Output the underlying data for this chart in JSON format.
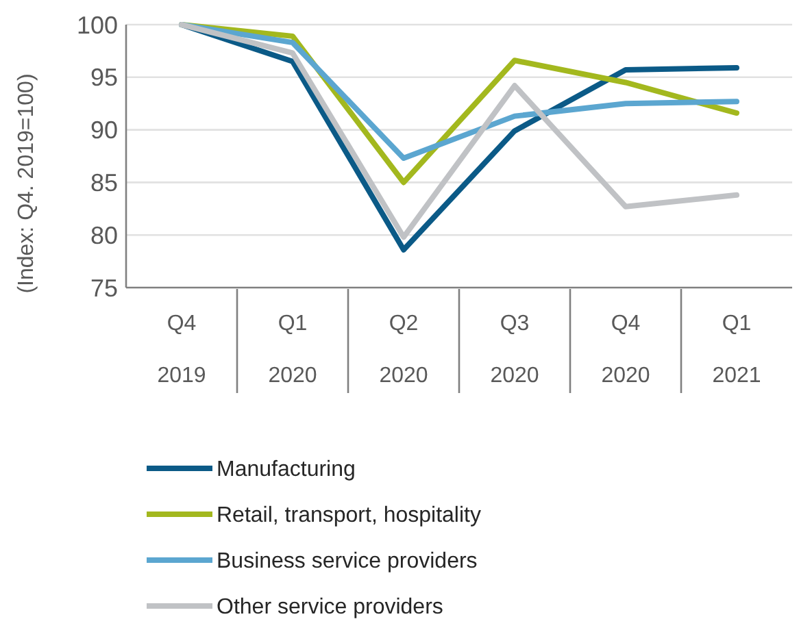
{
  "chart_data": {
    "type": "line",
    "ylabel": "(Index: Q4. 2019=100)",
    "categories": [
      "Q4 2019",
      "Q1 2020",
      "Q2 2020",
      "Q3 2020",
      "Q4 2020",
      "Q1 2021"
    ],
    "ylim": [
      75,
      100
    ],
    "yticks": [
      75,
      80,
      85,
      90,
      95,
      100
    ],
    "grid": "y",
    "legend": "bottom",
    "marker": "none",
    "line_style": "solid",
    "series": [
      {
        "name": "Manufacturing",
        "color": "#0b5a87",
        "values": [
          100,
          96.5,
          78.6,
          89.9,
          95.7,
          95.9
        ]
      },
      {
        "name": "Retail, transport, hospitality",
        "color": "#a3b81e",
        "values": [
          100,
          98.9,
          85.0,
          96.6,
          94.5,
          91.6
        ]
      },
      {
        "name": "Business service providers",
        "color": "#5ba6d0",
        "values": [
          100,
          98.3,
          87.3,
          91.3,
          92.5,
          92.7
        ]
      },
      {
        "name": "Other service providers",
        "color": "#c0c2c5",
        "values": [
          100,
          97.3,
          79.8,
          94.2,
          82.7,
          83.8
        ]
      }
    ]
  }
}
